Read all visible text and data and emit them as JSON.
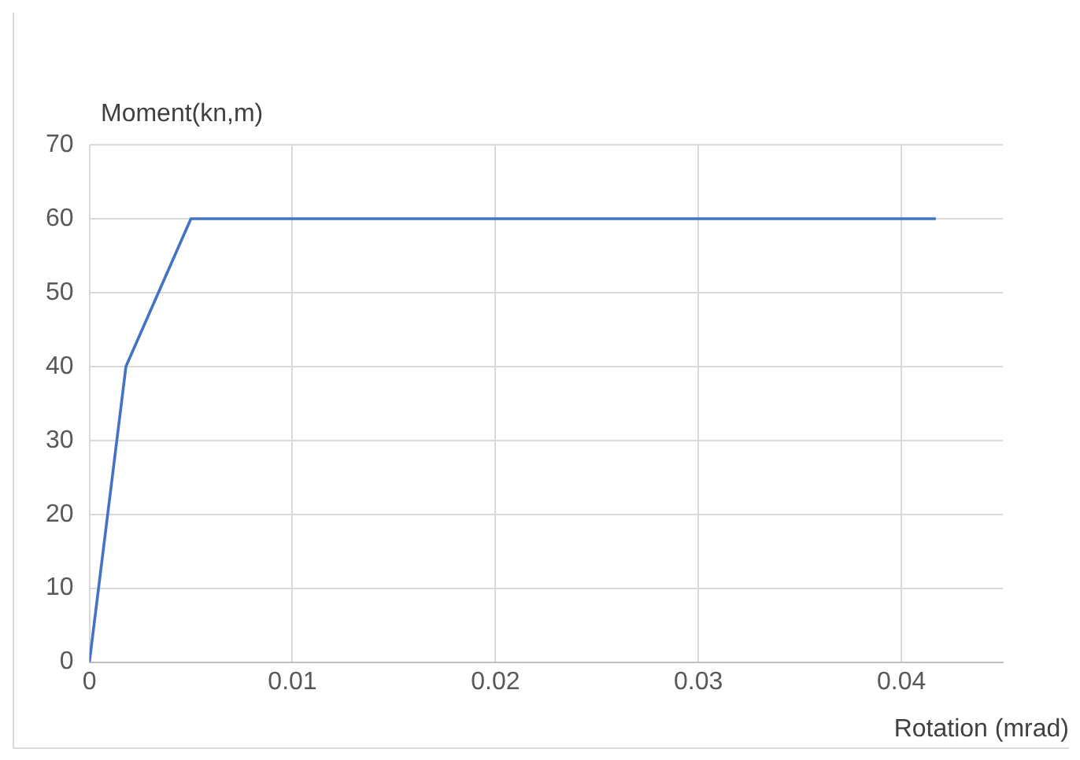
{
  "chart_data": {
    "type": "line",
    "xlabel": "Rotation (mrad)",
    "ylabel": "Moment(kn,m)",
    "x": [
      0,
      0.0018,
      0.005,
      0.0417
    ],
    "series": [
      {
        "color": "#4472c4",
        "values": [
          0,
          40,
          60,
          60
        ]
      }
    ],
    "xlim": [
      0,
      0.045
    ],
    "xticks": [
      0,
      0.01,
      0.02,
      0.03,
      0.04
    ],
    "ylim": [
      0,
      70
    ],
    "yticks": [
      0,
      10,
      20,
      30,
      40,
      50,
      60,
      70
    ],
    "grid": true,
    "legend": false,
    "marker": "none",
    "line_style": "solid"
  }
}
